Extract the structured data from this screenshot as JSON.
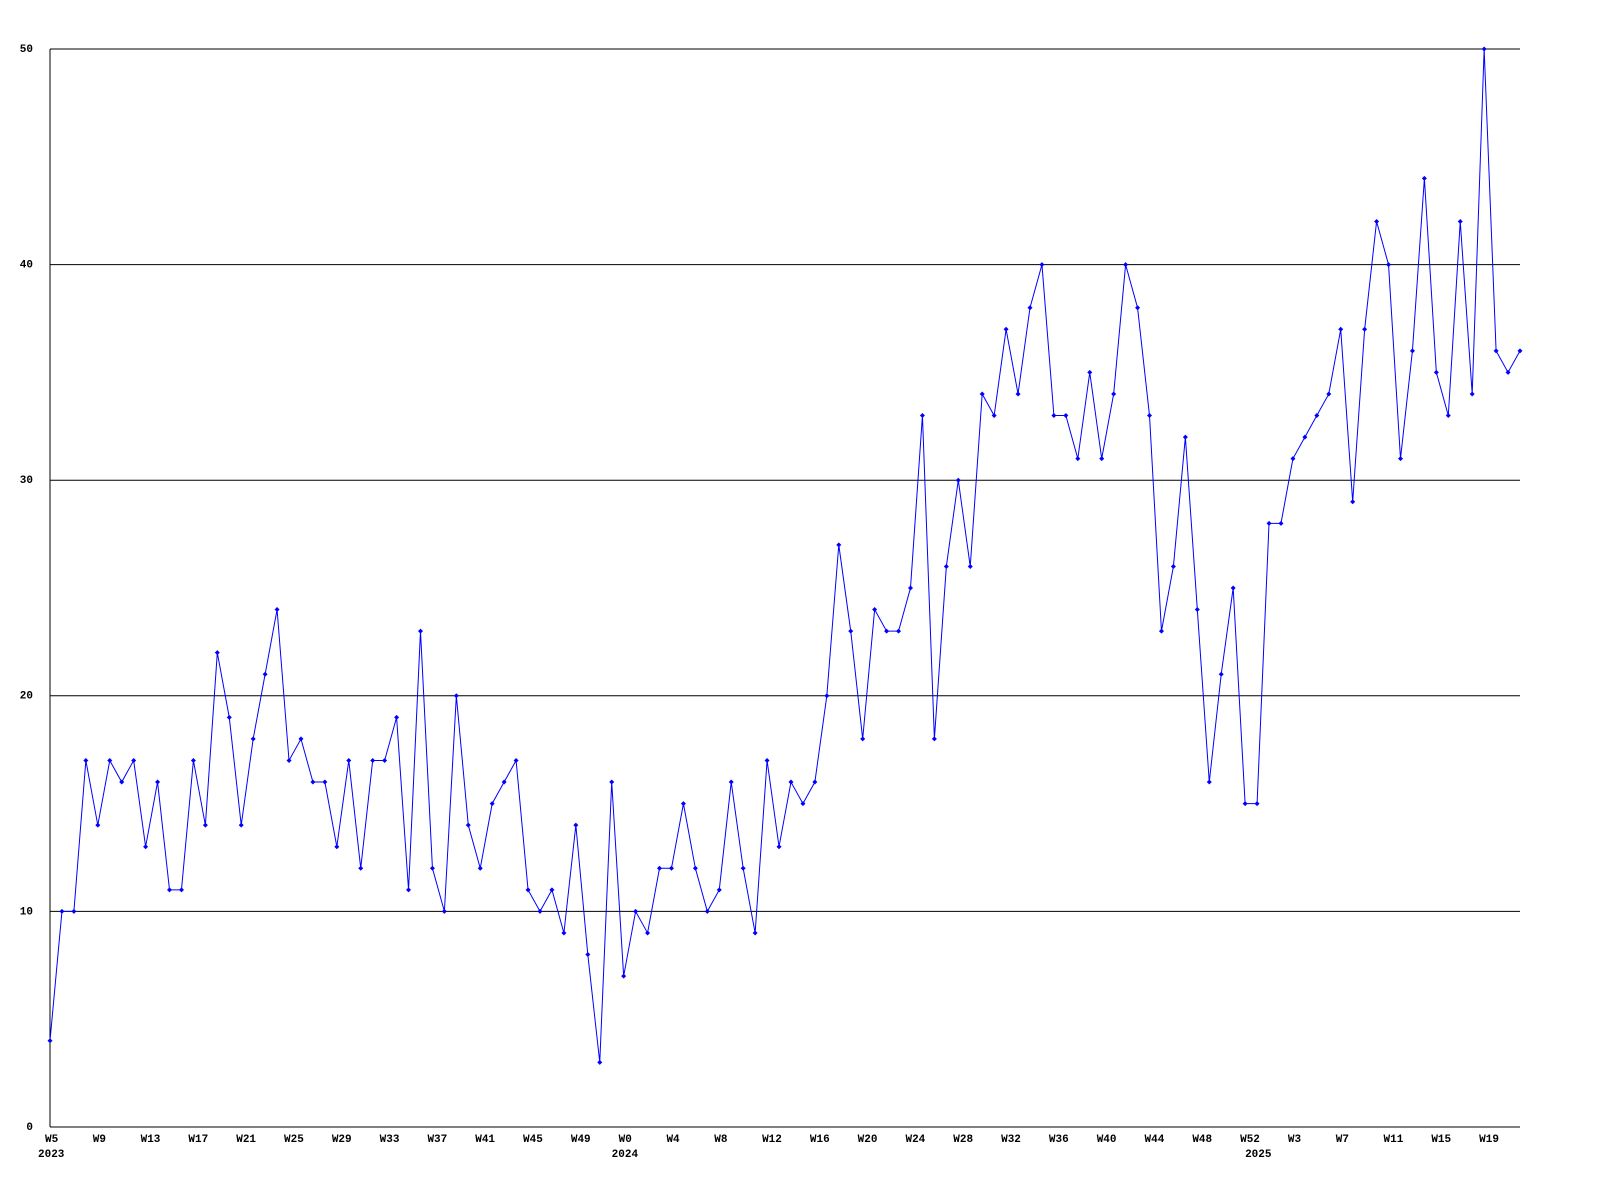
{
  "chart_data": {
    "type": "line",
    "categories": [
      "W5",
      null,
      null,
      null,
      "W9",
      null,
      null,
      null,
      "W13",
      null,
      null,
      null,
      "W17",
      null,
      null,
      null,
      "W21",
      null,
      null,
      null,
      "W25",
      null,
      null,
      null,
      "W29",
      null,
      null,
      null,
      "W33",
      null,
      null,
      null,
      "W37",
      null,
      null,
      null,
      "W41",
      null,
      null,
      null,
      "W45",
      null,
      null,
      null,
      "W49",
      null,
      null,
      null,
      "W0",
      null,
      null,
      null,
      "W4",
      null,
      null,
      null,
      "W8",
      null,
      null,
      null,
      "W12",
      null,
      null,
      null,
      "W16",
      null,
      null,
      null,
      "W20",
      null,
      null,
      null,
      "W24",
      null,
      null,
      null,
      "W28",
      null,
      null,
      null,
      "W32",
      null,
      null,
      null,
      "W36",
      null,
      null,
      null,
      "W40",
      null,
      null,
      null,
      "W44",
      null,
      null,
      null,
      "W48",
      null,
      null,
      null,
      "W52",
      null,
      null,
      null,
      "W3",
      null,
      null,
      null,
      "W7",
      null,
      null,
      null,
      "W11",
      null,
      null,
      null,
      "W15",
      null,
      null,
      null,
      "W19",
      null,
      null,
      null
    ],
    "x_groups": [
      {
        "label": "2023",
        "count": 48
      },
      {
        "label": "2024",
        "count": 53
      },
      {
        "label": "2025",
        "count": 23
      }
    ],
    "series": [
      {
        "color": "#0000ff",
        "values": [
          4,
          10,
          10,
          17,
          14,
          17,
          16,
          17,
          13,
          16,
          11,
          11,
          17,
          14,
          22,
          19,
          14,
          18,
          21,
          24,
          17,
          18,
          16,
          16,
          13,
          17,
          12,
          17,
          17,
          19,
          11,
          23,
          12,
          10,
          20,
          14,
          12,
          15,
          16,
          17,
          11,
          10,
          11,
          9,
          14,
          8,
          3,
          16,
          7,
          10,
          9,
          12,
          12,
          15,
          12,
          10,
          11,
          16,
          12,
          9,
          17,
          13,
          16,
          15,
          16,
          20,
          27,
          23,
          18,
          24,
          23,
          23,
          25,
          33,
          18,
          26,
          30,
          26,
          34,
          33,
          37,
          34,
          38,
          40,
          33,
          33,
          31,
          35,
          31,
          34,
          40,
          38,
          33,
          23,
          26,
          32,
          24,
          16,
          21,
          25,
          15,
          15,
          28,
          28,
          31,
          32,
          33,
          34,
          37,
          29,
          37,
          42,
          40,
          31,
          36,
          44,
          35,
          33,
          42,
          34,
          50,
          36,
          35,
          36
        ]
      }
    ],
    "ylim": [
      0,
      50
    ],
    "yticks": [
      0,
      10,
      20,
      30,
      40,
      50
    ],
    "grid": true
  }
}
